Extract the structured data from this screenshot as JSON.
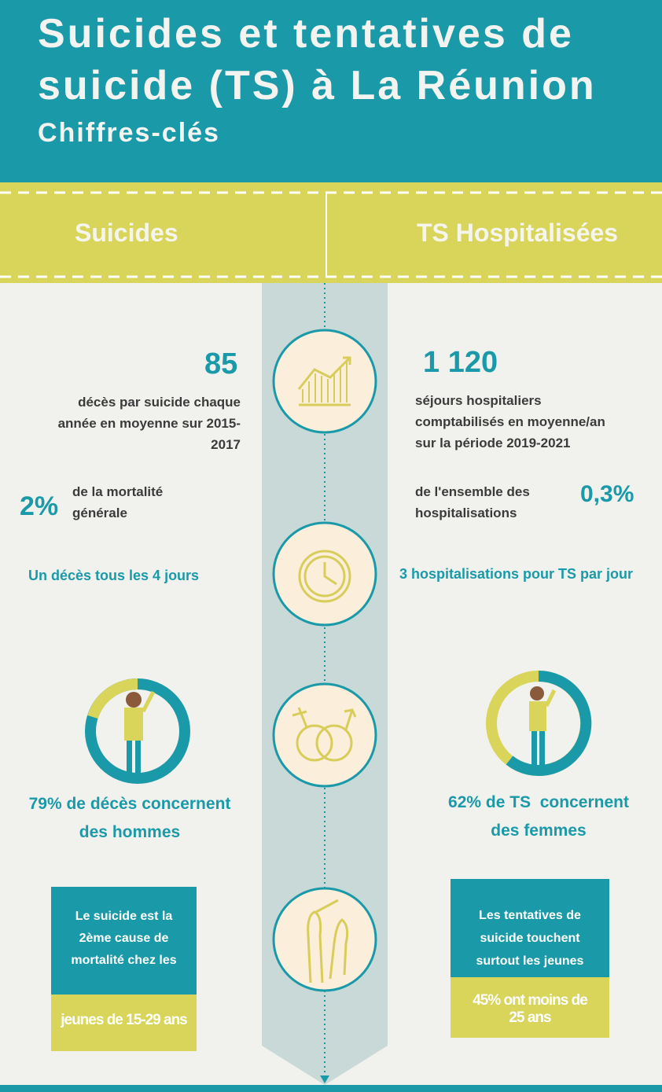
{
  "header": {
    "title_lines": [
      "Suicides et tentatives de",
      "suicide (TS) à La Réunion"
    ],
    "subtitle": "Chiffres-clés"
  },
  "tabs": [
    "Suicides",
    "TS Hospitalisées"
  ],
  "left": {
    "stat": "85",
    "stat_desc": [
      "décès par suicide chaque",
      "année en moyenne sur 2015-",
      "2017"
    ],
    "share": "2%",
    "share_desc": [
      "de la mortalité",
      "générale"
    ],
    "frequency": "Un décès tous les 4 jours",
    "gender": [
      "79% de décès concernent",
      "des hommes"
    ],
    "box": [
      "Le suicide est la",
      "2ème cause de",
      "mortalité chez les"
    ],
    "box_highlight": [
      "jeunes de 15-29 ans"
    ]
  },
  "right": {
    "stat": "1 120",
    "stat_desc": [
      "séjours hospitaliers",
      "comptabilisés en moyenne/an",
      "sur la période 2019-2021"
    ],
    "share": "0,3%",
    "share_desc": [
      "de l'ensemble des",
      "hospitalisations"
    ],
    "frequency": "3 hospitalisations pour TS par jour",
    "gender": [
      "62% de TS  concernent",
      "des femmes"
    ],
    "box": [
      "Les tentatives de",
      "suicide touchent",
      "surtout les jeunes"
    ],
    "box_highlight": [
      "45% ont moins de",
      "25 ans"
    ]
  }
}
